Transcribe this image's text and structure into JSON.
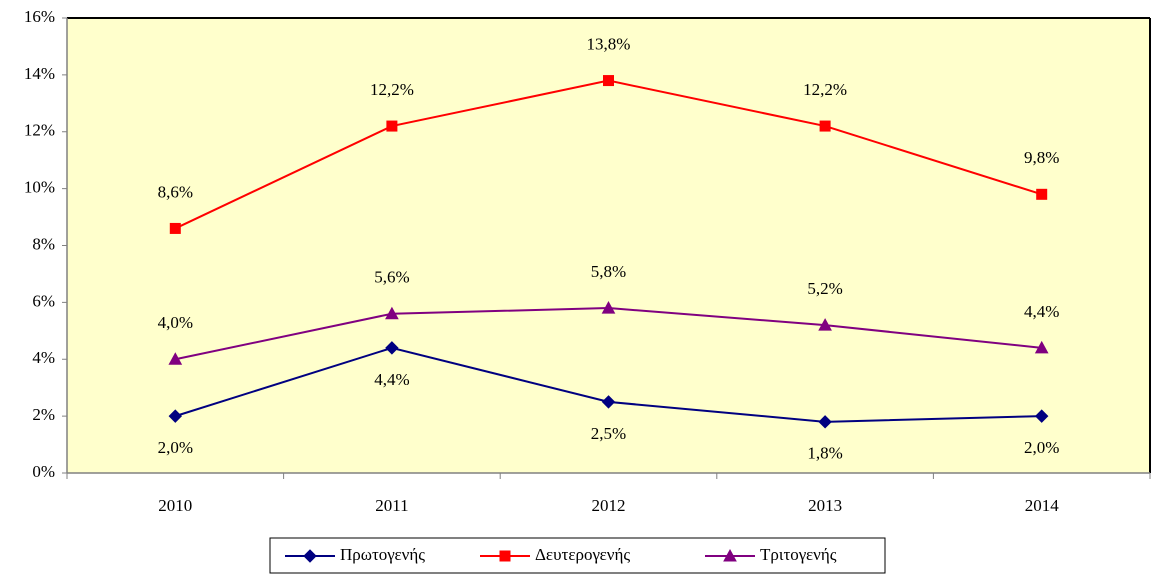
{
  "chart_data": {
    "type": "line",
    "categories": [
      "2010",
      "2011",
      "2012",
      "2013",
      "2014"
    ],
    "series": [
      {
        "name": "Πρωτογενής",
        "color": "#000080",
        "marker": "diamond",
        "label_position": "below",
        "values": [
          2.0,
          4.4,
          2.5,
          1.8,
          2.0
        ],
        "value_labels": [
          "2,0%",
          "4,4%",
          "2,5%",
          "1,8%",
          "2,0%"
        ]
      },
      {
        "name": "Δευτερογενής",
        "color": "#ff0000",
        "marker": "square",
        "label_position": "above",
        "values": [
          8.6,
          12.2,
          13.8,
          12.2,
          9.8
        ],
        "value_labels": [
          "8,6%",
          "12,2%",
          "13,8%",
          "12,2%",
          "9,8%"
        ]
      },
      {
        "name": "Τριτογενής",
        "color": "#800080",
        "marker": "triangle",
        "label_position": "above",
        "values": [
          4.0,
          5.6,
          5.8,
          5.2,
          4.4
        ],
        "value_labels": [
          "4,0%",
          "5,6%",
          "5,8%",
          "5,2%",
          "4,4%"
        ]
      }
    ],
    "ylim": [
      0,
      16
    ],
    "yticks": [
      {
        "value": 0,
        "label": "0%"
      },
      {
        "value": 2,
        "label": "2%"
      },
      {
        "value": 4,
        "label": "4%"
      },
      {
        "value": 6,
        "label": "6%"
      },
      {
        "value": 8,
        "label": "8%"
      },
      {
        "value": 10,
        "label": "10%"
      },
      {
        "value": 12,
        "label": "12%"
      },
      {
        "value": 14,
        "label": "14%"
      },
      {
        "value": 16,
        "label": "16%"
      }
    ],
    "plot_background": "#ffffcc",
    "legend": "bottom"
  }
}
